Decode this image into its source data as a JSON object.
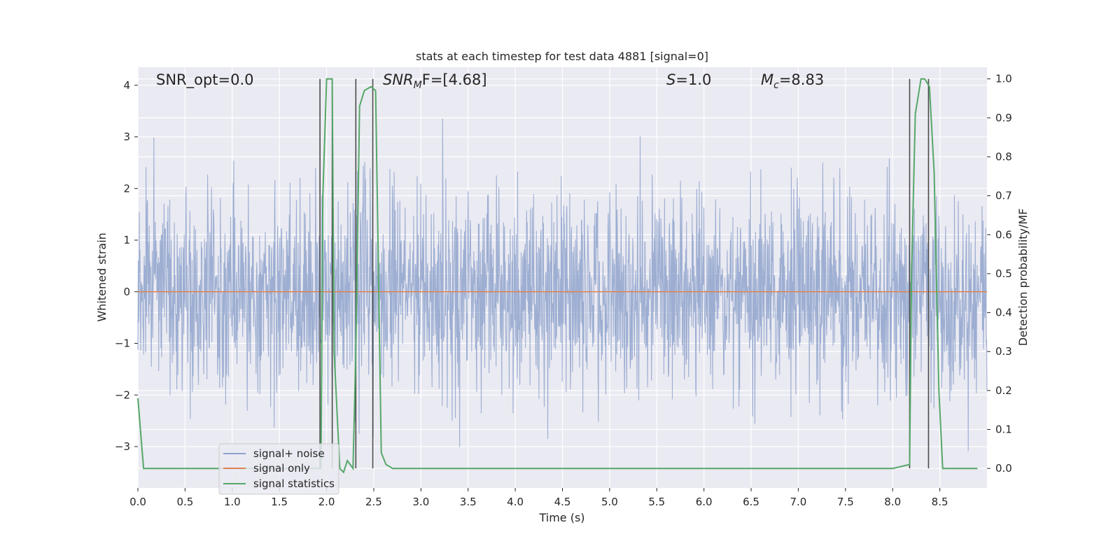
{
  "chart_data": {
    "type": "line",
    "title": "stats at each timestep for test data 4881 [signal=0]",
    "xlabel": "Time (s)",
    "ylabel_left": "Whitened strain",
    "ylabel_right": "Detection probability/MF",
    "xlim": [
      0.0,
      9.0
    ],
    "ylim_left": [
      -3.8,
      4.35
    ],
    "ylim_right": [
      -0.05,
      1.03
    ],
    "x_ticks": [
      "0.0",
      "0.5",
      "1.0",
      "1.5",
      "2.0",
      "2.5",
      "3.0",
      "3.5",
      "4.0",
      "4.5",
      "5.0",
      "5.5",
      "6.0",
      "6.5",
      "7.0",
      "7.5",
      "8.0",
      "8.5"
    ],
    "x_tick_values": [
      0,
      0.5,
      1,
      1.5,
      2,
      2.5,
      3,
      3.5,
      4,
      4.5,
      5,
      5.5,
      6,
      6.5,
      7,
      7.5,
      8,
      8.5
    ],
    "y_left_ticks": [
      "4",
      "3",
      "2",
      "1",
      "0",
      "−1",
      "−2",
      "−3"
    ],
    "y_left_tick_values": [
      4,
      3,
      2,
      1,
      0,
      -1,
      -2,
      -3
    ],
    "y_right_ticks": [
      "1.0",
      "0.9",
      "0.8",
      "0.7",
      "0.6",
      "0.5",
      "0.4",
      "0.3",
      "0.2",
      "0.1",
      "0.0"
    ],
    "y_right_tick_values": [
      1.0,
      0.9,
      0.8,
      0.7,
      0.6,
      0.5,
      0.4,
      0.3,
      0.2,
      0.1,
      0.0
    ],
    "grid": true,
    "annotations": {
      "snr_opt": "SNR_opt=0.0",
      "snr_mf_main": "SNR",
      "snr_mf_sub": "M",
      "snr_mf_tail": "F=[4.68]",
      "s_main": "S",
      "s_tail": "=1.0",
      "mc_main": "M",
      "mc_sub": "c",
      "mc_tail": "=8.83"
    },
    "legend": {
      "placement": "lower-left",
      "entries": [
        "signal+ noise",
        "signal only",
        "signal statistics"
      ]
    },
    "series": [
      {
        "name": "signal+ noise",
        "axis": "left",
        "color": "#8fa3cc",
        "description": "whitened noise, approx. Gaussian, sigma ~1, spikes up to ~4 and down to ~-3.5"
      },
      {
        "name": "signal only",
        "axis": "left",
        "color": "#dd8452",
        "x": [
          0.0,
          9.0
        ],
        "y": [
          0.0,
          0.0
        ]
      },
      {
        "name": "signal statistics",
        "axis": "right",
        "color": "#55a868",
        "x": [
          0.0,
          0.06,
          0.12,
          0.5,
          1.0,
          1.5,
          1.94,
          1.96,
          2.0,
          2.06,
          2.08,
          2.14,
          2.18,
          2.22,
          2.28,
          2.31,
          2.35,
          2.4,
          2.47,
          2.52,
          2.58,
          2.63,
          2.7,
          3.0,
          4.0,
          5.0,
          6.0,
          7.0,
          8.0,
          8.18,
          8.2,
          8.24,
          8.3,
          8.34,
          8.39,
          8.44,
          8.49,
          8.53,
          8.6,
          8.9
        ],
        "y": [
          0.18,
          0.0,
          0.0,
          0.0,
          0.0,
          0.0,
          0.0,
          0.7,
          1.0,
          1.0,
          0.3,
          0.0,
          -0.01,
          0.02,
          0.0,
          0.3,
          0.93,
          0.97,
          0.98,
          0.97,
          0.04,
          0.01,
          0.0,
          0.0,
          0.0,
          0.0,
          0.0,
          0.0,
          0.0,
          0.01,
          0.5,
          0.91,
          1.0,
          1.0,
          0.98,
          0.76,
          0.2,
          0.0,
          0.0,
          0.0
        ]
      }
    ],
    "vertical_lines": {
      "color": "#4a4a4a",
      "x": [
        1.93,
        2.06,
        2.31,
        2.49,
        8.18,
        8.38
      ]
    }
  }
}
